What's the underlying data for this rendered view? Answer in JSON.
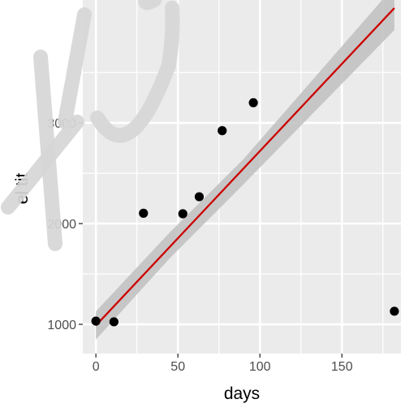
{
  "chart_data": {
    "type": "scatter",
    "xlabel": "days",
    "ylabel": "el tit",
    "xlim": [
      -8,
      186
    ],
    "ylim": [
      710,
      4220
    ],
    "x_ticks": [
      0,
      50,
      100,
      150
    ],
    "x_tick_labels": [
      "0",
      "50",
      "100",
      "150"
    ],
    "y_ticks": [
      1000,
      2000,
      3000
    ],
    "y_tick_labels": [
      "1000",
      "2000",
      "3000"
    ],
    "grid": true,
    "legend": "none",
    "points": [
      {
        "x": 0,
        "y": 1032
      },
      {
        "x": 11,
        "y": 1025
      },
      {
        "x": 29,
        "y": 2103
      },
      {
        "x": 53,
        "y": 2098
      },
      {
        "x": 63,
        "y": 2267
      },
      {
        "x": 77,
        "y": 2923
      },
      {
        "x": 96,
        "y": 3200
      },
      {
        "x": 182,
        "y": 1130
      }
    ],
    "fit_line": {
      "x": [
        0,
        182
      ],
      "y": [
        989,
        4140
      ]
    },
    "confidence_band": {
      "x": [
        0,
        45,
        90,
        182
      ],
      "lower": [
        849,
        1655,
        2390,
        3921
      ],
      "upper": [
        1129,
        1912,
        2640,
        4359
      ]
    },
    "colors": {
      "panel": "#ebebeb",
      "gridline": "#ffffff",
      "points": "#000000",
      "fit_line": "#cc0000",
      "band": "#bfbfbf",
      "tick_labels": "#4d4d4d",
      "axis_title": "#000000"
    }
  }
}
